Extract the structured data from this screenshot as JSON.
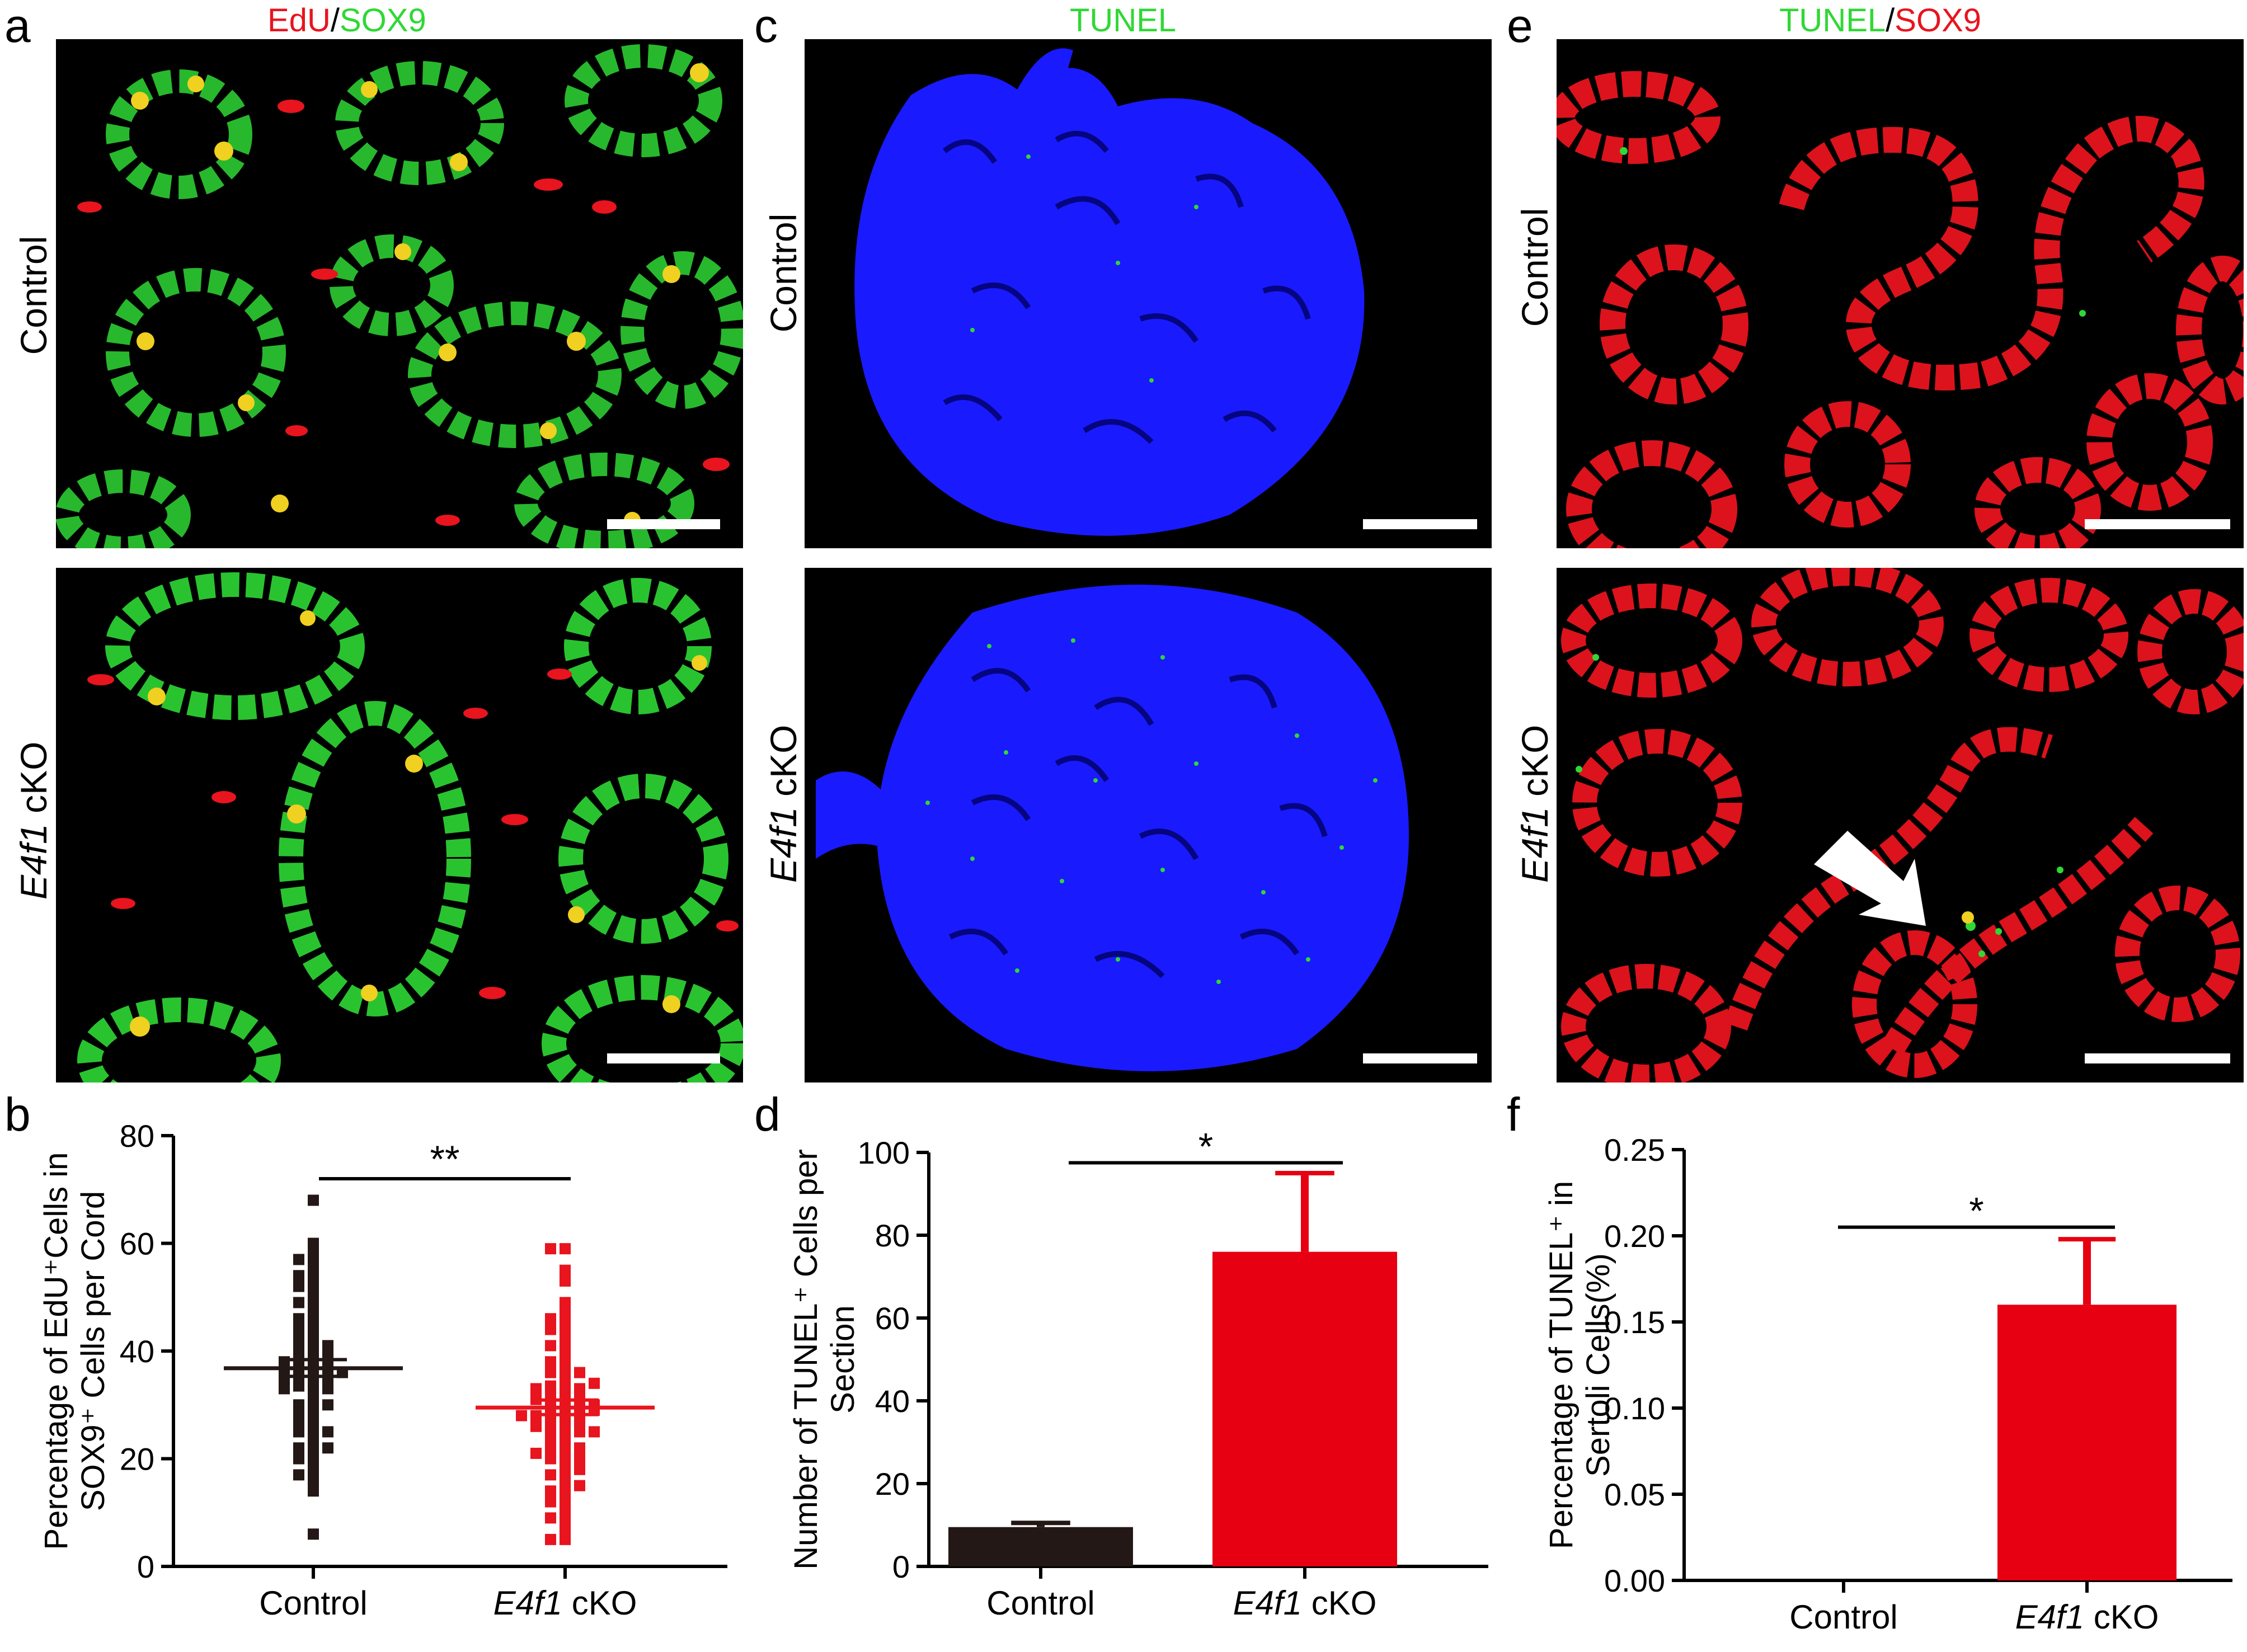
{
  "panels": {
    "a": {
      "letter": "a",
      "title_left": "EdU",
      "title_sep": "/",
      "title_right": "SOX9",
      "rows": [
        {
          "label": "Control"
        },
        {
          "label_gene": "E4f1",
          "label_rest": " cKO"
        }
      ]
    },
    "c": {
      "letter": "c",
      "title": "TUNEL",
      "rows": [
        {
          "label": "Control"
        },
        {
          "label_gene": "E4f1",
          "label_rest": " cKO"
        }
      ]
    },
    "e": {
      "letter": "e",
      "title_left": "TUNEL",
      "title_sep": "/",
      "title_right": "SOX9",
      "rows": [
        {
          "label": "Control"
        },
        {
          "label_gene": "E4f1",
          "label_rest": " cKO"
        }
      ]
    },
    "b": {
      "letter": "b"
    },
    "d": {
      "letter": "d"
    },
    "f": {
      "letter": "f"
    }
  },
  "colors": {
    "red": "#e8141e",
    "green": "#2fd835",
    "blue": "#1a1aff",
    "control_bar": "#231815",
    "cko_bar": "#e60012",
    "black": "#000000"
  },
  "chart_data": [
    {
      "id": "b",
      "type": "scatter",
      "ylabel_line1": "Percentage of EdU⁺Cells in",
      "ylabel_line2": "SOX9⁺ Cells per Cord",
      "ylim": [
        0,
        80
      ],
      "yticks": [
        "0",
        "20",
        "40",
        "60",
        "80"
      ],
      "categories": [
        {
          "label": "Control"
        },
        {
          "label_gene": "E4f1",
          "label_rest": " cKO"
        }
      ],
      "significance": "**",
      "series": [
        {
          "color": "#231815",
          "marker": "square",
          "mean": 36.8,
          "sem_upper": 38.4,
          "sem_lower": 35.3,
          "values": [
            68,
            6,
            14,
            60,
            58,
            57,
            56,
            55,
            54,
            53,
            52,
            51,
            50,
            49,
            48,
            47,
            46,
            45,
            44,
            43,
            42,
            41,
            40.5,
            40,
            39.5,
            39,
            38.5,
            38,
            37.5,
            37,
            36.5,
            36,
            35.5,
            35,
            34.5,
            34,
            33.5,
            33,
            32,
            31,
            30,
            29,
            28,
            27,
            26,
            25,
            24,
            23,
            22,
            21,
            20,
            19,
            18,
            17,
            16,
            41,
            43,
            38,
            36,
            35,
            33,
            30,
            27,
            25,
            22
          ]
        },
        {
          "color": "#e8141e",
          "marker": "square",
          "mean": 29.5,
          "sem_upper": 30.9,
          "sem_lower": 28.2,
          "values": [
            59,
            59,
            55,
            53,
            49,
            48,
            47,
            46,
            45,
            44,
            43,
            42,
            41,
            40,
            39,
            38,
            37,
            36,
            35,
            34,
            33.5,
            33,
            32.5,
            32,
            31.5,
            31,
            30.5,
            30,
            29.5,
            29,
            28.5,
            28,
            27.5,
            27,
            26.5,
            26,
            25.5,
            25,
            24,
            23,
            22,
            21,
            20,
            19,
            18,
            17,
            16,
            15,
            14,
            13,
            12,
            11,
            10,
            9,
            8,
            7,
            5,
            5,
            36,
            33,
            31,
            29,
            27,
            26,
            24,
            22,
            20,
            34,
            30,
            28,
            25,
            21,
            18,
            15
          ]
        }
      ]
    },
    {
      "id": "d",
      "type": "bar",
      "ylabel_line1": "Number of TUNEL⁺ Cells per",
      "ylabel_line2": "Section",
      "ylim": [
        0,
        100
      ],
      "yticks": [
        "0",
        "20",
        "40",
        "60",
        "80",
        "100"
      ],
      "categories": [
        {
          "label": "Control"
        },
        {
          "label_gene": "E4f1",
          "label_rest": " cKO"
        }
      ],
      "values": [
        9.5,
        76
      ],
      "errors": [
        1.0,
        19
      ],
      "significance": "*"
    },
    {
      "id": "f",
      "type": "bar",
      "ylabel_line1": "Percentage of TUNEL⁺ in",
      "ylabel_line2": "Sertoli Cells(%)",
      "ylim": [
        0,
        0.25
      ],
      "yticks": [
        "0.00",
        "0.05",
        "0.10",
        "0.15",
        "0.20",
        "0.25"
      ],
      "categories": [
        {
          "label": "Control"
        },
        {
          "label_gene": "E4f1",
          "label_rest": " cKO"
        }
      ],
      "values": [
        0,
        0.16
      ],
      "errors": [
        0,
        0.038
      ],
      "significance": "*"
    }
  ]
}
